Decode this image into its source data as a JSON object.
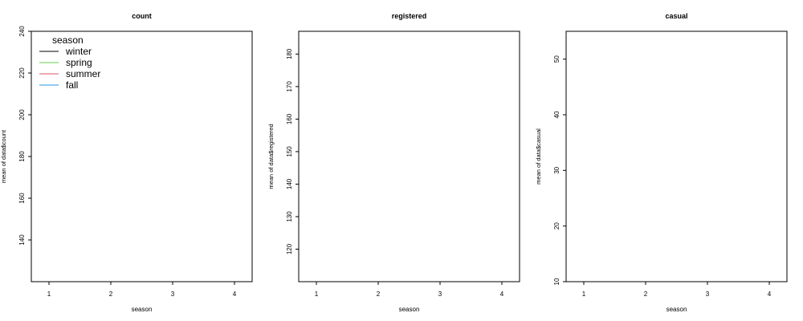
{
  "chart_data": [
    {
      "type": "line",
      "title": "count",
      "xlabel": "season",
      "ylabel": "mean of  data$count",
      "categories": [
        "1",
        "2",
        "3",
        "4"
      ],
      "y_ticks": [
        140,
        160,
        180,
        200,
        220,
        240
      ],
      "ylim": [
        120,
        240
      ],
      "legend": {
        "title": "season",
        "position": "top-left",
        "entries": [
          "winter",
          "spring",
          "summer",
          "fall"
        ],
        "colors": [
          "#000000",
          "#61d04f",
          "#df536b",
          "#2297e6"
        ]
      },
      "series": []
    },
    {
      "type": "line",
      "title": "registered",
      "xlabel": "season",
      "ylabel": "mean of  data$registered",
      "categories": [
        "1",
        "2",
        "3",
        "4"
      ],
      "y_ticks": [
        120,
        130,
        140,
        150,
        160,
        170,
        180
      ],
      "ylim": [
        110,
        187
      ],
      "series": []
    },
    {
      "type": "line",
      "title": "casual",
      "xlabel": "season",
      "ylabel": "mean of  data$casual",
      "categories": [
        "1",
        "2",
        "3",
        "4"
      ],
      "y_ticks": [
        10,
        20,
        30,
        40,
        50
      ],
      "ylim": [
        10,
        55
      ],
      "series": []
    }
  ]
}
